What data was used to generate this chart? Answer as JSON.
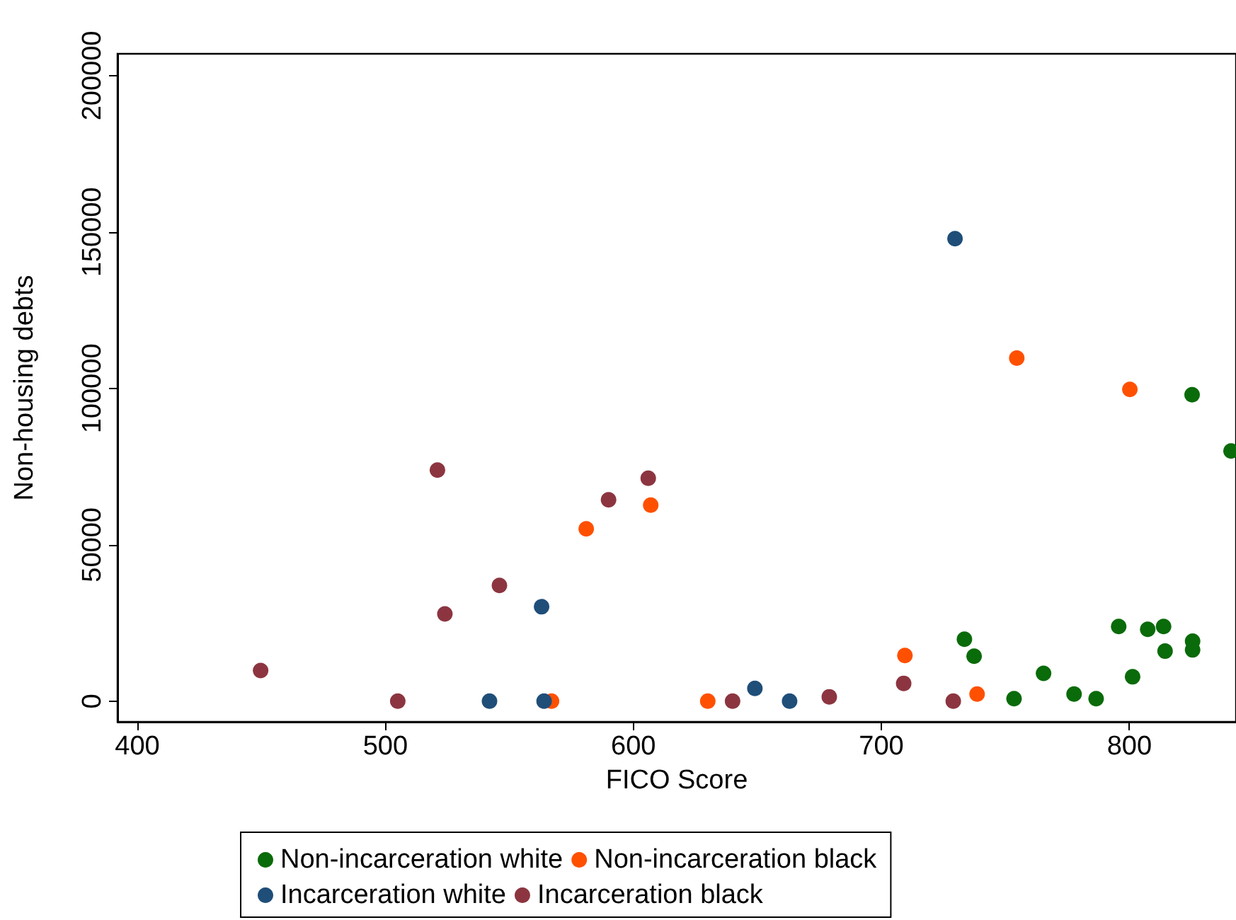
{
  "chart_data": {
    "type": "scatter",
    "xlabel": "FICO Score",
    "ylabel": "Non-housing debts",
    "xlim": [
      392,
      843
    ],
    "xticks": [
      400,
      500,
      600,
      700,
      800
    ],
    "ylim": [
      -6600,
      207000
    ],
    "yticks": [
      0,
      50000,
      100000,
      150000,
      200000
    ],
    "grid": false,
    "legend": "bottom",
    "marker": "circle",
    "series": [
      {
        "name": "Non-incarceration white",
        "color": "#0a6b0a",
        "x": [
          733.5,
          737.4,
          753.5,
          765.4,
          777.7,
          786.6,
          795.7,
          801.3,
          807.4,
          813.8,
          814.4,
          825.5,
          825.5,
          841,
          825.3
        ],
        "values": [
          19800,
          14400,
          800,
          8900,
          2300,
          800,
          23900,
          7800,
          23000,
          23900,
          16000,
          19200,
          16400,
          80000,
          98000
        ]
      },
      {
        "name": "Non-incarceration black",
        "color": "#ff5000",
        "x": [
          581,
          607,
          567,
          630,
          709.5,
          738.6,
          754.6,
          800.2
        ],
        "values": [
          55100,
          62700,
          0,
          0,
          14600,
          2300,
          109700,
          99700
        ]
      },
      {
        "name": "Incarceration white",
        "color": "#1f4e79",
        "x": [
          542,
          563,
          564,
          649,
          663,
          729.7
        ],
        "values": [
          0,
          30200,
          0,
          4100,
          0,
          147900
        ]
      },
      {
        "name": "Incarceration black",
        "color": "#8c3540",
        "x": [
          449.7,
          505,
          521,
          524,
          546,
          590,
          606,
          640,
          679,
          709,
          729
        ],
        "values": [
          9800,
          0,
          73900,
          27900,
          37000,
          64400,
          71300,
          0,
          1400,
          5700,
          0
        ]
      }
    ]
  }
}
